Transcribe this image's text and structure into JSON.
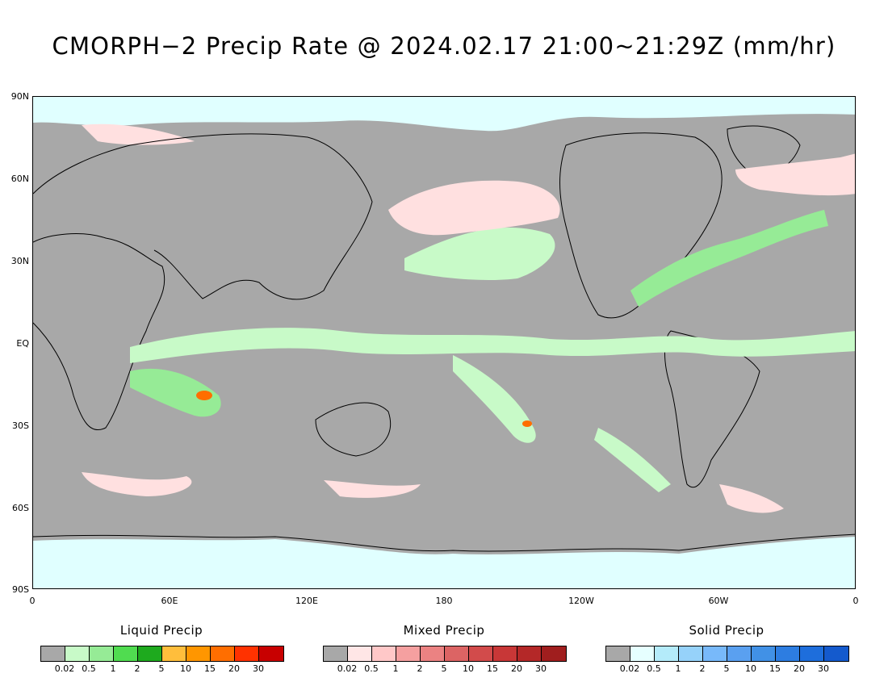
{
  "title": "CMORPH−2 Precip Rate @ 2024.02.17 21:00~21:29Z (mm/hr)",
  "lat_labels": [
    "90N",
    "60N",
    "30N",
    "EQ",
    "30S",
    "60S",
    "90S"
  ],
  "lon_labels": [
    "0",
    "60E",
    "120E",
    "180",
    "120W",
    "60W",
    "0"
  ],
  "legends": {
    "liquid": {
      "title": "Liquid Precip",
      "colors": [
        "#a8a8a8",
        "#c8fac8",
        "#96eb96",
        "#50dc50",
        "#1eaa1e",
        "#ffbe3c",
        "#ff9600",
        "#ff6e00",
        "#ff3200",
        "#c80000"
      ],
      "ticks": [
        "0.02",
        "0.5",
        "1",
        "2",
        "5",
        "10",
        "15",
        "20",
        "30"
      ]
    },
    "mixed": {
      "title": "Mixed Precip",
      "colors": [
        "#a8a8a8",
        "#ffe6e6",
        "#ffc8c8",
        "#f5a0a0",
        "#eb8282",
        "#dc6464",
        "#d24b4b",
        "#c83737",
        "#b42828",
        "#a01e1e"
      ],
      "ticks": [
        "0.02",
        "0.5",
        "1",
        "2",
        "5",
        "10",
        "15",
        "20",
        "30"
      ]
    },
    "solid": {
      "title": "Solid Precip",
      "colors": [
        "#a8a8a8",
        "#e6ffff",
        "#b4ebfa",
        "#96d2fa",
        "#78b9fa",
        "#5aa0f0",
        "#4191e6",
        "#2d7de1",
        "#1e6edc",
        "#145acd"
      ],
      "ticks": [
        "0.02",
        "0.5",
        "1",
        "2",
        "5",
        "10",
        "15",
        "20",
        "30"
      ]
    }
  },
  "map_colors": {
    "no_precip": "#a8a8a8",
    "polar_snow": "#e0ffff",
    "mixed_light": "#ffe0e0",
    "liquid_light": "#c8fac8",
    "liquid_mid": "#96eb96",
    "liquid_high": "#50dc50",
    "heavy": "#ff6e00",
    "coastline": "#000000"
  }
}
